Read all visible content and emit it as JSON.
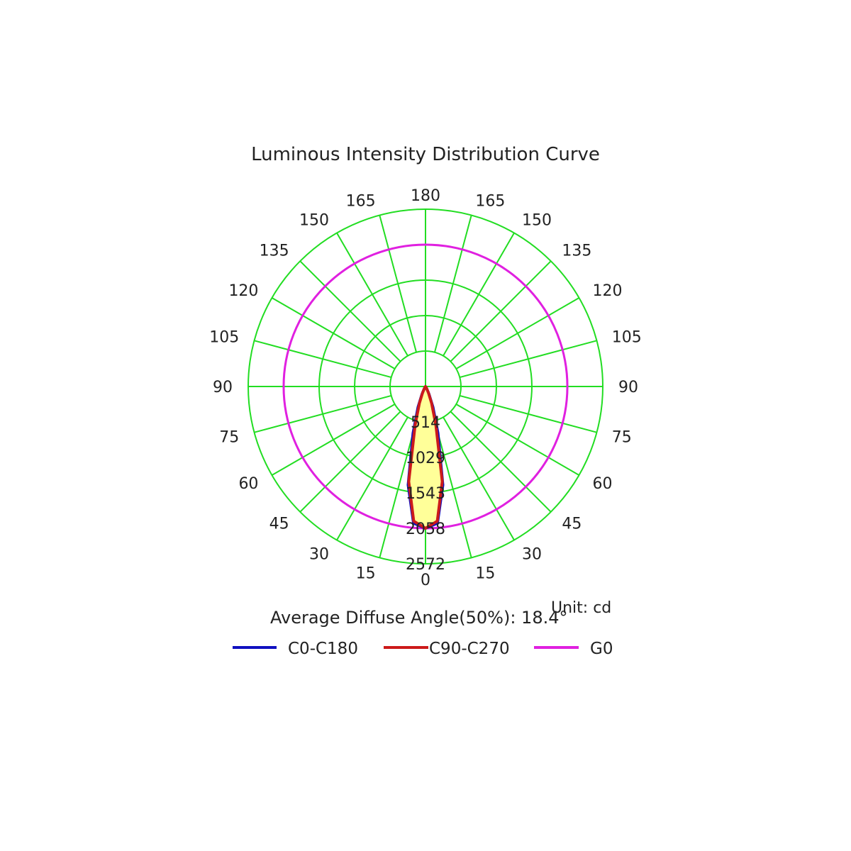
{
  "chart_data": {
    "type": "polar",
    "title": "Luminous Intensity Distribution Curve",
    "unit": "Unit: cd",
    "average_diffuse_angle": "Average Diffuse Angle(50%): 18.4°",
    "angle_labels": {
      "left": [
        "0",
        "15",
        "30",
        "45",
        "60",
        "75",
        "90",
        "105",
        "120",
        "135",
        "150",
        "165",
        "180"
      ],
      "right": [
        "15",
        "30",
        "45",
        "60",
        "75",
        "90",
        "105",
        "120",
        "135",
        "150",
        "165"
      ]
    },
    "angles_deg": [
      0,
      15,
      30,
      45,
      60,
      75,
      90,
      105,
      120,
      135,
      150,
      165,
      180
    ],
    "radial_ticks": [
      514,
      1029,
      1543,
      2058,
      2572
    ],
    "radial_tick_labels": [
      "514",
      "1029",
      "1543",
      "2058",
      "2572"
    ],
    "r_max": 2572,
    "grid": true,
    "colors": {
      "grid": "#22dd22",
      "C0-C180": "#1010c0",
      "C90-C270": "#cc1a1a",
      "G0": "#e020e0",
      "fill": "#ffff99"
    },
    "series": [
      {
        "name": "C0-C180",
        "angles": [
          0,
          5,
          10,
          15,
          20,
          25,
          30,
          40,
          60,
          90,
          180
        ],
        "values": [
          2058,
          1990,
          1450,
          700,
          320,
          120,
          40,
          8,
          0,
          0,
          0
        ],
        "symmetric": true
      },
      {
        "name": "C90-C270",
        "angles": [
          0,
          5,
          10,
          15,
          20,
          25,
          30,
          40,
          60,
          90,
          180
        ],
        "values": [
          2058,
          1960,
          1400,
          580,
          260,
          100,
          35,
          8,
          0,
          0,
          0
        ],
        "symmetric": true
      },
      {
        "name": "G0",
        "shape": "circle",
        "value": 2058
      }
    ],
    "legend": [
      "C0-C180",
      "C90-C270",
      "G0"
    ],
    "legend_position": "bottom"
  }
}
